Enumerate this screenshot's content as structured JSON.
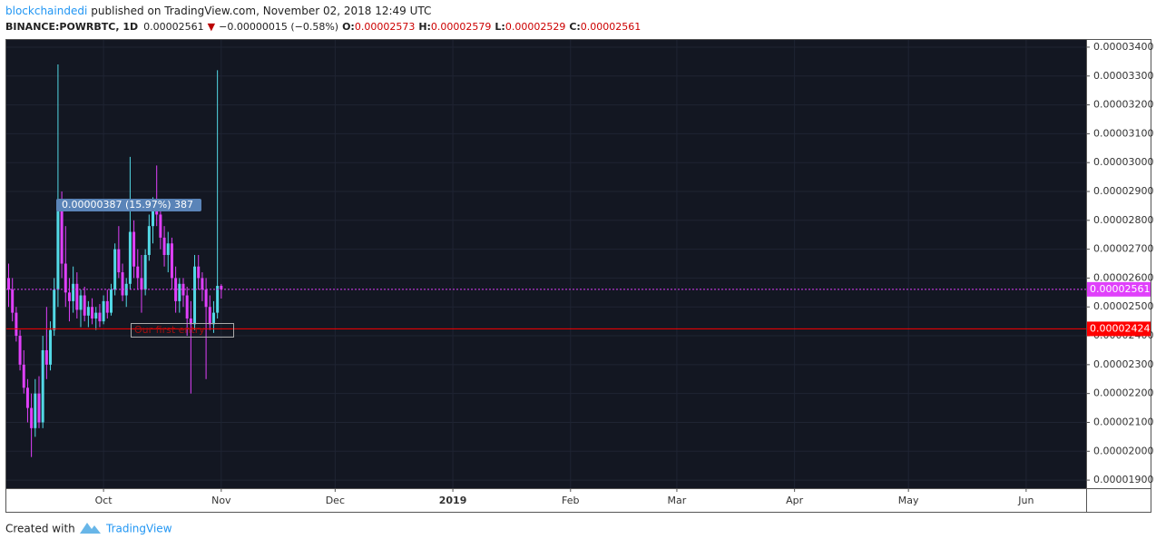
{
  "header": {
    "author": "blockchaindedi",
    "published": "published on TradingView.com, November 02, 2018 12:49 UTC",
    "symbol": "BINANCE:POWRBTC, 1D",
    "last": "0.00002561",
    "arrow": "▼",
    "change": "−0.00000015 (−0.58%)",
    "o_label": "O:",
    "o": "0.00002573",
    "h_label": "H:",
    "h": "0.00002579",
    "l_label": "L:",
    "l": "0.00002529",
    "c_label": "C:",
    "c": "0.00002561"
  },
  "chart_data": {
    "type": "candlestick",
    "up_color": "#53d9e6",
    "down_color": "#e040fb",
    "grid": true,
    "x": [
      -25,
      -24,
      -23,
      -22,
      -21,
      -20,
      -19,
      -18,
      -17,
      -16,
      -15,
      -14,
      -13,
      -12,
      -11,
      -10,
      -9,
      -8,
      -7,
      -6,
      -5,
      -4,
      -3,
      -2,
      -1,
      0,
      1,
      2,
      3,
      4,
      5,
      6,
      7,
      8,
      9,
      10,
      11,
      12,
      13,
      14,
      15,
      16,
      17,
      18,
      19,
      20,
      21,
      22,
      23,
      24,
      25,
      26,
      27,
      28,
      29,
      30,
      31
    ],
    "open": [
      2.6e-05,
      2.56e-05,
      2.48e-05,
      2.4e-05,
      2.3e-05,
      2.22e-05,
      2.15e-05,
      2.08e-05,
      2.2e-05,
      2.1e-05,
      2.35e-05,
      2.3e-05,
      2.42e-05,
      2.56e-05,
      2.85e-05,
      2.65e-05,
      2.55e-05,
      2.52e-05,
      2.58e-05,
      2.49e-05,
      2.54e-05,
      2.47e-05,
      2.5e-05,
      2.46e-05,
      2.48e-05,
      2.45e-05,
      2.52e-05,
      2.48e-05,
      2.56e-05,
      2.7e-05,
      2.62e-05,
      2.54e-05,
      2.58e-05,
      2.76e-05,
      2.64e-05,
      2.6e-05,
      2.56e-05,
      2.68e-05,
      2.78e-05,
      2.85e-05,
      2.82e-05,
      2.74e-05,
      2.68e-05,
      2.72e-05,
      2.6e-05,
      2.52e-05,
      2.58e-05,
      2.54e-05,
      2.46e-05,
      2.44e-05,
      2.64e-05,
      2.6e-05,
      2.56e-05,
      2.5e-05,
      2.44e-05,
      2.48e-05,
      2.573e-05
    ],
    "high": [
      2.65e-05,
      2.6e-05,
      2.5e-05,
      2.42e-05,
      2.35e-05,
      2.25e-05,
      2.2e-05,
      2.25e-05,
      2.26e-05,
      2.4e-05,
      2.5e-05,
      2.45e-05,
      2.6e-05,
      3.34e-05,
      2.9e-05,
      2.78e-05,
      2.6e-05,
      2.64e-05,
      2.62e-05,
      2.56e-05,
      2.57e-05,
      2.52e-05,
      2.53e-05,
      2.5e-05,
      2.51e-05,
      2.54e-05,
      2.56e-05,
      2.58e-05,
      2.72e-05,
      2.78e-05,
      2.65e-05,
      2.6e-05,
      3.02e-05,
      2.8e-05,
      2.7e-05,
      2.68e-05,
      2.7e-05,
      2.82e-05,
      2.88e-05,
      2.99e-05,
      2.86e-05,
      2.78e-05,
      2.76e-05,
      2.74e-05,
      2.64e-05,
      2.6e-05,
      2.6e-05,
      2.57e-05,
      2.52e-05,
      2.68e-05,
      2.68e-05,
      2.62e-05,
      2.6e-05,
      2.54e-05,
      2.52e-05,
      3.32e-05,
      2.579e-05
    ],
    "low": [
      2.5e-05,
      2.45e-05,
      2.38e-05,
      2.28e-05,
      2.2e-05,
      2.1e-05,
      1.98e-05,
      2.05e-05,
      2.08e-05,
      2.08e-05,
      2.25e-05,
      2.28e-05,
      2.4e-05,
      2.5e-05,
      2.6e-05,
      2.5e-05,
      2.45e-05,
      2.48e-05,
      2.46e-05,
      2.43e-05,
      2.45e-05,
      2.43e-05,
      2.44e-05,
      2.42e-05,
      2.43e-05,
      2.44e-05,
      2.46e-05,
      2.47e-05,
      2.54e-05,
      2.6e-05,
      2.52e-05,
      2.5e-05,
      2.56e-05,
      2.6e-05,
      2.56e-05,
      2.48e-05,
      2.54e-05,
      2.66e-05,
      2.72e-05,
      2.78e-05,
      2.7e-05,
      2.64e-05,
      2.62e-05,
      2.56e-05,
      2.48e-05,
      2.48e-05,
      2.5e-05,
      2.4e-05,
      2.2e-05,
      2.42e-05,
      2.56e-05,
      2.52e-05,
      2.25e-05,
      2.42e-05,
      2.41e-05,
      2.46e-05,
      2.529e-05
    ],
    "close": [
      2.56e-05,
      2.48e-05,
      2.4e-05,
      2.3e-05,
      2.22e-05,
      2.15e-05,
      2.08e-05,
      2.2e-05,
      2.1e-05,
      2.35e-05,
      2.3e-05,
      2.42e-05,
      2.56e-05,
      2.85e-05,
      2.65e-05,
      2.55e-05,
      2.52e-05,
      2.58e-05,
      2.49e-05,
      2.54e-05,
      2.47e-05,
      2.5e-05,
      2.46e-05,
      2.48e-05,
      2.45e-05,
      2.52e-05,
      2.48e-05,
      2.56e-05,
      2.7e-05,
      2.62e-05,
      2.54e-05,
      2.58e-05,
      2.76e-05,
      2.64e-05,
      2.6e-05,
      2.56e-05,
      2.68e-05,
      2.78e-05,
      2.85e-05,
      2.82e-05,
      2.74e-05,
      2.68e-05,
      2.72e-05,
      2.6e-05,
      2.52e-05,
      2.58e-05,
      2.54e-05,
      2.46e-05,
      2.44e-05,
      2.64e-05,
      2.6e-05,
      2.56e-05,
      2.5e-05,
      2.44e-05,
      2.48e-05,
      2.573e-05,
      2.561e-05
    ],
    "xlim": [
      -25.6,
      258.8
    ],
    "xticks": [
      {
        "value": 0,
        "label": "Oct"
      },
      {
        "value": 31,
        "label": "Nov"
      },
      {
        "value": 61,
        "label": "Dec"
      },
      {
        "value": 92,
        "label": "2019"
      },
      {
        "value": 123,
        "label": "Feb"
      },
      {
        "value": 151,
        "label": "Mar"
      },
      {
        "value": 182,
        "label": "Apr"
      },
      {
        "value": 212,
        "label": "May"
      },
      {
        "value": 243,
        "label": "Jun"
      }
    ],
    "ylim": [
      1.872e-05,
      3.425e-05
    ],
    "yticks": [
      {
        "value": 3.4e-05,
        "label": "0.00003400"
      },
      {
        "value": 3.3e-05,
        "label": "0.00003300"
      },
      {
        "value": 3.2e-05,
        "label": "0.00003200"
      },
      {
        "value": 3.1e-05,
        "label": "0.00003100"
      },
      {
        "value": 3e-05,
        "label": "0.00003000"
      },
      {
        "value": 2.9e-05,
        "label": "0.00002900"
      },
      {
        "value": 2.8e-05,
        "label": "0.00002800"
      },
      {
        "value": 2.7e-05,
        "label": "0.00002700"
      },
      {
        "value": 2.6e-05,
        "label": "0.00002600"
      },
      {
        "value": 2.5e-05,
        "label": "0.00002500"
      },
      {
        "value": 2.4e-05,
        "label": "0.00002400"
      },
      {
        "value": 2.3e-05,
        "label": "0.00002300"
      },
      {
        "value": 2.2e-05,
        "label": "0.00002200"
      },
      {
        "value": 2.1e-05,
        "label": "0.00002100"
      },
      {
        "value": 2e-05,
        "label": "0.00002000"
      },
      {
        "value": 1.9e-05,
        "label": "0.00001900"
      }
    ],
    "price_lines": [
      {
        "value": 2.561e-05,
        "label": "0.00002561",
        "color": "#e040fb"
      },
      {
        "value": 2.424e-05,
        "label": "0.00002424",
        "color": "#ff0000"
      }
    ],
    "annotations": [
      "0.00000387 (15.97%) 387",
      "Our first entry"
    ]
  },
  "footer": {
    "created": "Created with",
    "brand": "TradingView"
  }
}
